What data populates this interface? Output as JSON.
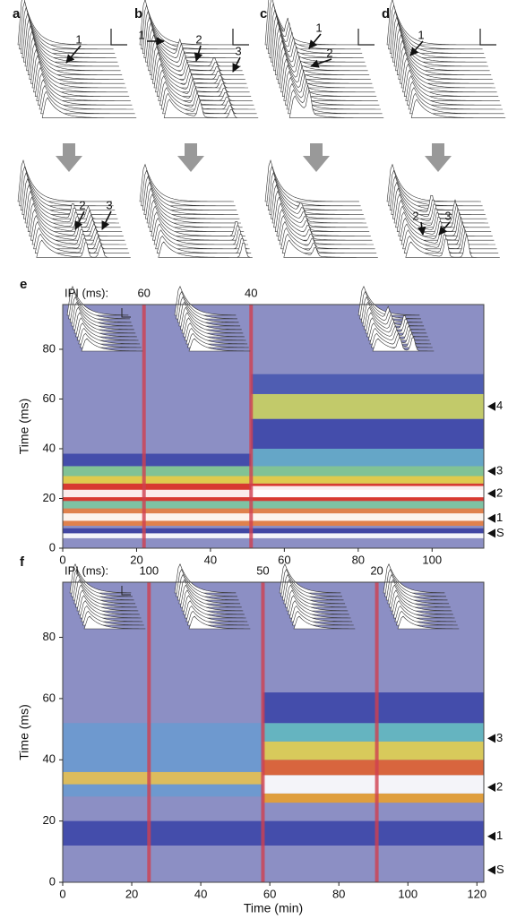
{
  "panels": [
    {
      "label": "a",
      "arrows_top": [
        "1"
      ],
      "arrows_bottom": [
        "2",
        "3"
      ]
    },
    {
      "label": "b",
      "arrows_top": [
        "1",
        "2",
        "3"
      ],
      "arrows_bottom": []
    },
    {
      "label": "c",
      "arrows_top": [
        "1",
        "2"
      ],
      "arrows_bottom": []
    },
    {
      "label": "d",
      "arrows_top": [
        "1"
      ],
      "arrows_bottom": [
        "2",
        "3"
      ]
    }
  ],
  "chart_data": [
    {
      "type": "heatmap",
      "label": "e",
      "ylabel": "Time (ms)",
      "ipi_label": "IPI (ms):",
      "xlim": [
        0,
        114
      ],
      "xticks": [
        0,
        20,
        40,
        60,
        80,
        100
      ],
      "ylim": [
        0,
        98
      ],
      "yticks": [
        0,
        20,
        40,
        60,
        80
      ],
      "ipi_x": [
        22,
        51
      ],
      "ipi_values": [
        60,
        40
      ],
      "band_labels": [
        "S",
        "1",
        "2",
        "3",
        "4"
      ],
      "band_y": [
        6,
        12,
        22,
        31,
        57
      ]
    },
    {
      "type": "heatmap",
      "label": "f",
      "ylabel": "Time (ms)",
      "xlabel": "Time (min)",
      "ipi_label": "IPI (ms):",
      "xlim": [
        0,
        122
      ],
      "xticks": [
        0,
        20,
        40,
        60,
        80,
        100,
        120
      ],
      "ylim": [
        0,
        98
      ],
      "yticks": [
        0,
        20,
        40,
        60,
        80
      ],
      "ipi_x": [
        25,
        58,
        91
      ],
      "ipi_values": [
        100,
        50,
        20
      ],
      "band_labels": [
        "S",
        "1",
        "2",
        "3"
      ],
      "band_y": [
        4,
        15,
        31,
        47
      ]
    }
  ]
}
